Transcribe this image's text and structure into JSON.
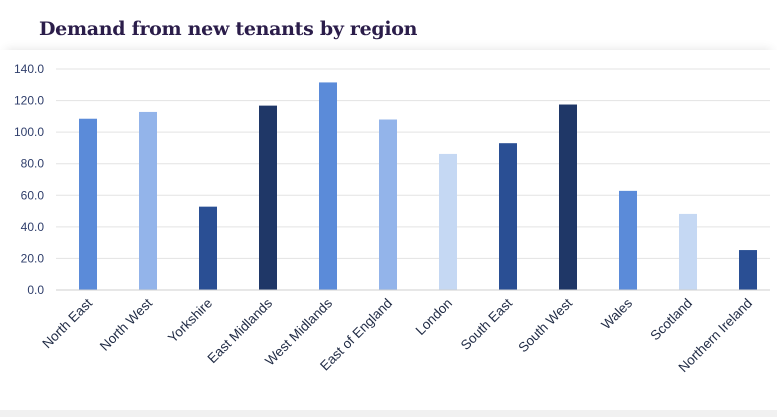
{
  "chart_data": {
    "type": "bar",
    "title": "Demand from new tenants by region",
    "categories": [
      "North East",
      "North West",
      "Yorkshire",
      "East Midlands",
      "West Midlands",
      "East of England",
      "London",
      "South East",
      "South West",
      "Wales",
      "Scotland",
      "Northern Ireland"
    ],
    "values": [
      108.5,
      112.8,
      52.8,
      116.8,
      131.5,
      108.0,
      86.2,
      93.0,
      117.5,
      62.8,
      48.2,
      25.3
    ],
    "yticks": [
      "0.0",
      "20.0",
      "40.0",
      "60.0",
      "80.0",
      "100.0",
      "120.0",
      "140.0"
    ],
    "ylim": [
      0,
      140
    ],
    "grid": true,
    "xlabel": "",
    "ylabel": "",
    "bar_colors": [
      "#5b8bd9",
      "#93b4ea",
      "#2a4f94",
      "#1f3767",
      "#5b8bd9",
      "#93b4ea",
      "#c5d8f3",
      "#2a4f94",
      "#1f3767",
      "#5b8bd9",
      "#c5d8f3",
      "#2a4f94"
    ]
  }
}
